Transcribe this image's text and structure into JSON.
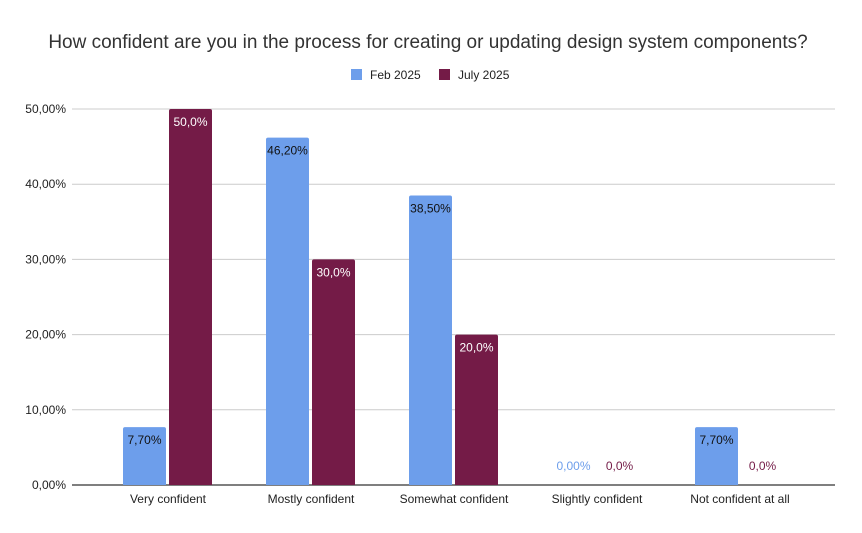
{
  "chart_data": {
    "type": "bar",
    "title": "How confident are you in the process for creating or updating design system components?",
    "categories": [
      "Very confident",
      "Mostly confident",
      "Somewhat confident",
      "Slightly confident",
      "Not confident at all"
    ],
    "series": [
      {
        "name": "Feb 2025",
        "color": "#6d9eeb",
        "values": [
          7.7,
          46.2,
          38.5,
          0,
          7.7
        ],
        "labels": [
          "7,70%",
          "46,20%",
          "38,50%",
          "0,00%",
          "7,70%"
        ]
      },
      {
        "name": "July 2025",
        "color": "#741b47",
        "values": [
          50,
          30,
          20,
          0,
          0
        ],
        "labels": [
          "50,0%",
          "30,0%",
          "20,0%",
          "0,0%",
          "0,0%"
        ]
      }
    ],
    "ylim": [
      0,
      50
    ],
    "yticks": [
      "0,00%",
      "10,00%",
      "20,00%",
      "30,00%",
      "40,00%",
      "50,00%"
    ],
    "grid": true,
    "legend": "top"
  }
}
